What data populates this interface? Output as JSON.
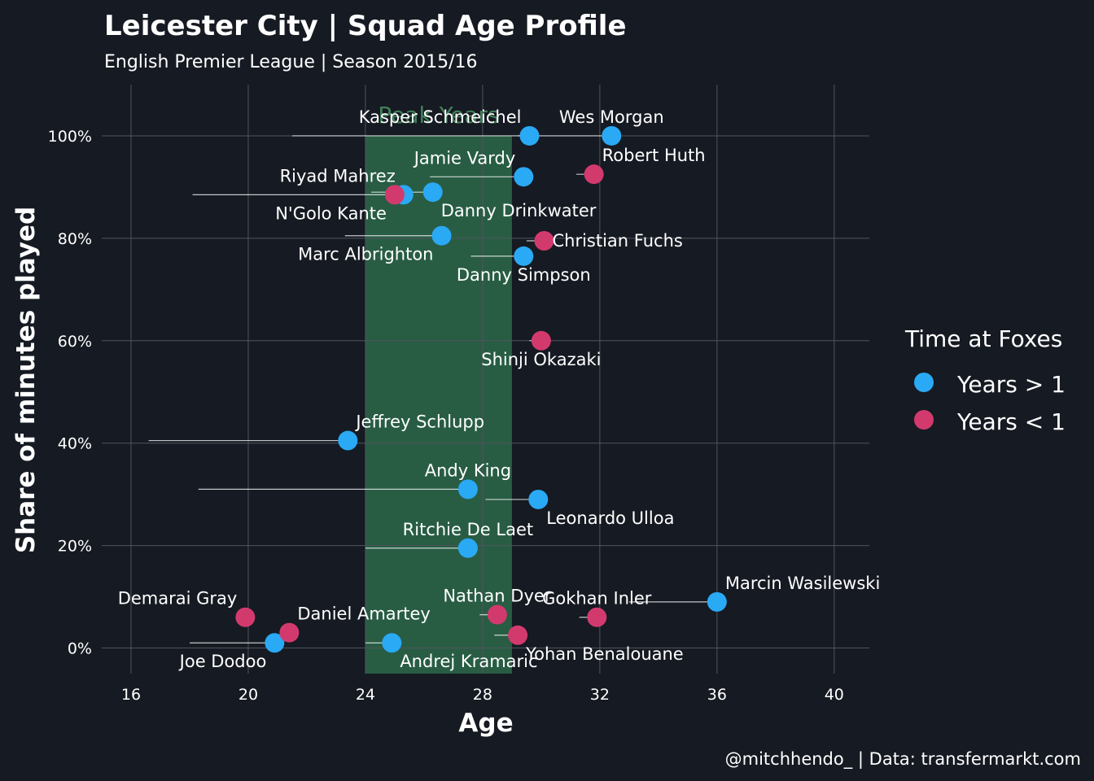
{
  "chart_data": {
    "type": "scatter",
    "title": "Leicester City | Squad Age Profile",
    "subtitle": "English Premier League | Season 2015/16",
    "xlabel": "Age",
    "ylabel": "Share of minutes played",
    "xlim": [
      15,
      41.2
    ],
    "ylim": [
      -0.05,
      1.1
    ],
    "x_ticks": [
      16,
      20,
      24,
      28,
      32,
      36,
      40
    ],
    "y_ticks": [
      0,
      0.2,
      0.4,
      0.6,
      0.8,
      1.0
    ],
    "y_tick_labels": [
      "0%",
      "20%",
      "40%",
      "60%",
      "80%",
      "100%"
    ],
    "grid": true,
    "peak_band": {
      "label": "Peak Years",
      "x_start": 24,
      "x_end": 29,
      "color": "#2b6a4a"
    },
    "legend": {
      "title": "Time at Foxes",
      "placement": "right",
      "entries": [
        {
          "label": "Years > 1",
          "color": "#2aa9f5"
        },
        {
          "label": "Years < 1",
          "color": "#d23a6e"
        }
      ]
    },
    "caption": "@mitchhendo_ | Data: transfermarkt.com",
    "series": [
      {
        "name": "Years > 1",
        "color": "#2aa9f5",
        "points": [
          {
            "player": "Kasper Schmeichel",
            "age": 29.6,
            "share": 1.0,
            "prev_age": 21.5,
            "label_pos": "above-left"
          },
          {
            "player": "Wes Morgan",
            "age": 32.4,
            "share": 1.0,
            "prev_age": 29.2,
            "label_pos": "above"
          },
          {
            "player": "Jamie Vardy",
            "age": 29.4,
            "share": 0.92,
            "prev_age": 26.2,
            "label_pos": "above-left"
          },
          {
            "player": "Riyad Mahrez",
            "age": 25.3,
            "share": 0.885,
            "prev_age": 18.1,
            "label_pos": "above-left"
          },
          {
            "player": "Danny Drinkwater",
            "age": 26.3,
            "share": 0.89,
            "prev_age": 24.2,
            "label_pos": "below-right"
          },
          {
            "player": "Marc Albrighton",
            "age": 26.6,
            "share": 0.805,
            "prev_age": 23.3,
            "label_pos": "below-left"
          },
          {
            "player": "Danny Simpson",
            "age": 29.4,
            "share": 0.765,
            "prev_age": 27.6,
            "label_pos": "below"
          },
          {
            "player": "Jeffrey Schlupp",
            "age": 23.4,
            "share": 0.405,
            "prev_age": 16.6,
            "label_pos": "above-right"
          },
          {
            "player": "Andy King",
            "age": 27.5,
            "share": 0.31,
            "prev_age": 18.3,
            "label_pos": "above"
          },
          {
            "player": "Leonardo Ulloa",
            "age": 29.9,
            "share": 0.29,
            "prev_age": 28.1,
            "label_pos": "below-right"
          },
          {
            "player": "Ritchie De Laet",
            "age": 27.5,
            "share": 0.195,
            "prev_age": 24.0,
            "label_pos": "above"
          },
          {
            "player": "Marcin Wasilewski",
            "age": 36.0,
            "share": 0.09,
            "prev_age": 33.0,
            "label_pos": "above-right"
          },
          {
            "player": "Joe Dodoo",
            "age": 20.9,
            "share": 0.01,
            "prev_age": 18.0,
            "label_pos": "below-left"
          },
          {
            "player": "Andrej Kramaric",
            "age": 24.9,
            "share": 0.01,
            "prev_age": 24.0,
            "label_pos": "below-right"
          }
        ]
      },
      {
        "name": "Years < 1",
        "color": "#d23a6e",
        "points": [
          {
            "player": "Robert Huth",
            "age": 31.8,
            "share": 0.925,
            "prev_age": 31.2,
            "label_pos": "above-right"
          },
          {
            "player": "N'Golo Kante",
            "age": 25.0,
            "share": 0.885,
            "prev_age": 25.0,
            "label_pos": "below-left"
          },
          {
            "player": "Christian Fuchs",
            "age": 30.1,
            "share": 0.795,
            "prev_age": 29.5,
            "label_pos": "right"
          },
          {
            "player": "Shinji Okazaki",
            "age": 30.0,
            "share": 0.6,
            "prev_age": 29.6,
            "label_pos": "below"
          },
          {
            "player": "Nathan Dyer",
            "age": 28.5,
            "share": 0.065,
            "prev_age": 27.9,
            "label_pos": "above"
          },
          {
            "player": "Gokhan Inler",
            "age": 31.9,
            "share": 0.06,
            "prev_age": 31.3,
            "label_pos": "above"
          },
          {
            "player": "Demarai Gray",
            "age": 19.9,
            "share": 0.06,
            "prev_age": 19.9,
            "label_pos": "above-left"
          },
          {
            "player": "Daniel Amartey",
            "age": 21.4,
            "share": 0.03,
            "prev_age": 21.4,
            "label_pos": "above-right"
          },
          {
            "player": "Yohan Benalouane",
            "age": 29.2,
            "share": 0.025,
            "prev_age": 28.4,
            "label_pos": "below-right"
          }
        ]
      }
    ]
  }
}
